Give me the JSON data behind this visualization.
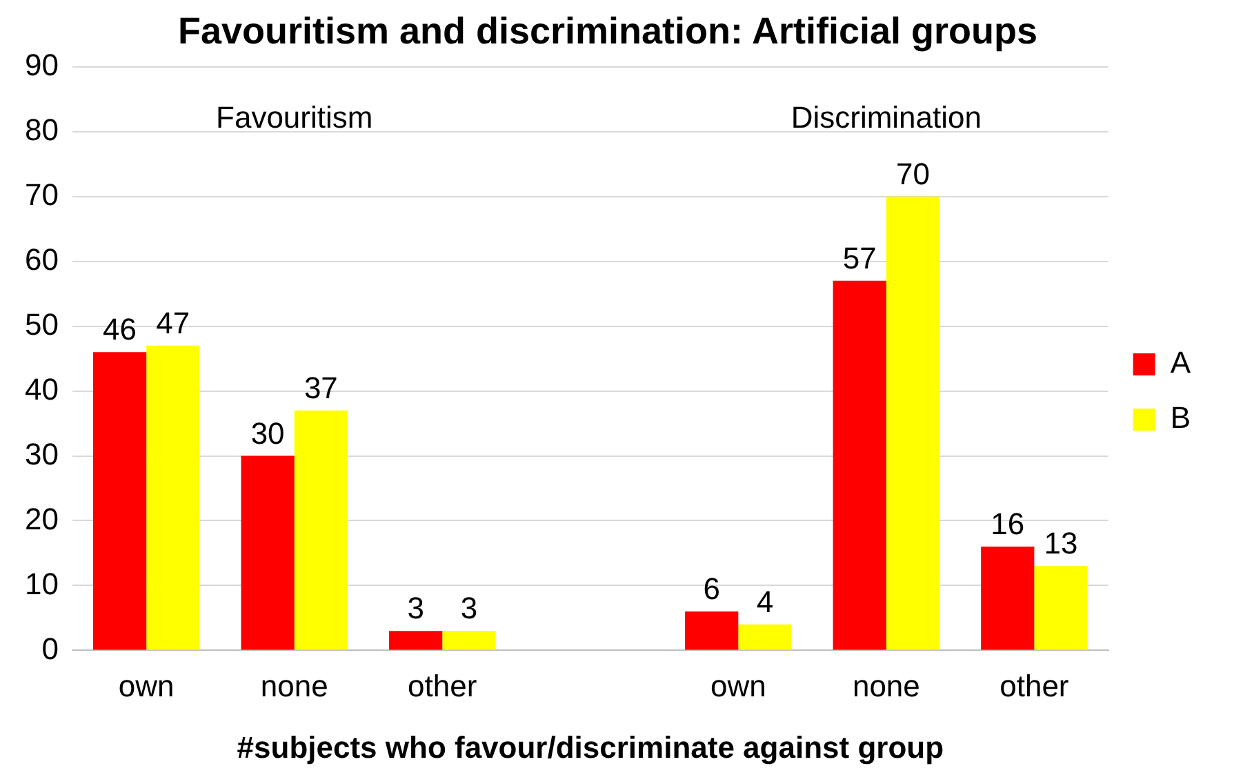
{
  "chart_data": {
    "type": "bar",
    "title": "Favouritism and discrimination: Artificial groups",
    "xlabel": "#subjects who favour/discriminate against group",
    "categories": [
      "own",
      "none",
      "other",
      null,
      "own",
      "none",
      "other"
    ],
    "series": [
      {
        "name": "A",
        "color": "#ff0000",
        "values": [
          46,
          30,
          3,
          null,
          6,
          57,
          16
        ]
      },
      {
        "name": "B",
        "color": "#ffff00",
        "values": [
          47,
          37,
          3,
          null,
          4,
          70,
          13
        ]
      }
    ],
    "ylim": [
      0,
      90
    ],
    "yticks": [
      0,
      10,
      20,
      30,
      40,
      50,
      60,
      70,
      80,
      90
    ],
    "grid": "y",
    "legend": "right",
    "data_labels": true,
    "annotations": [
      "Favouritism",
      "Discrimination"
    ]
  }
}
